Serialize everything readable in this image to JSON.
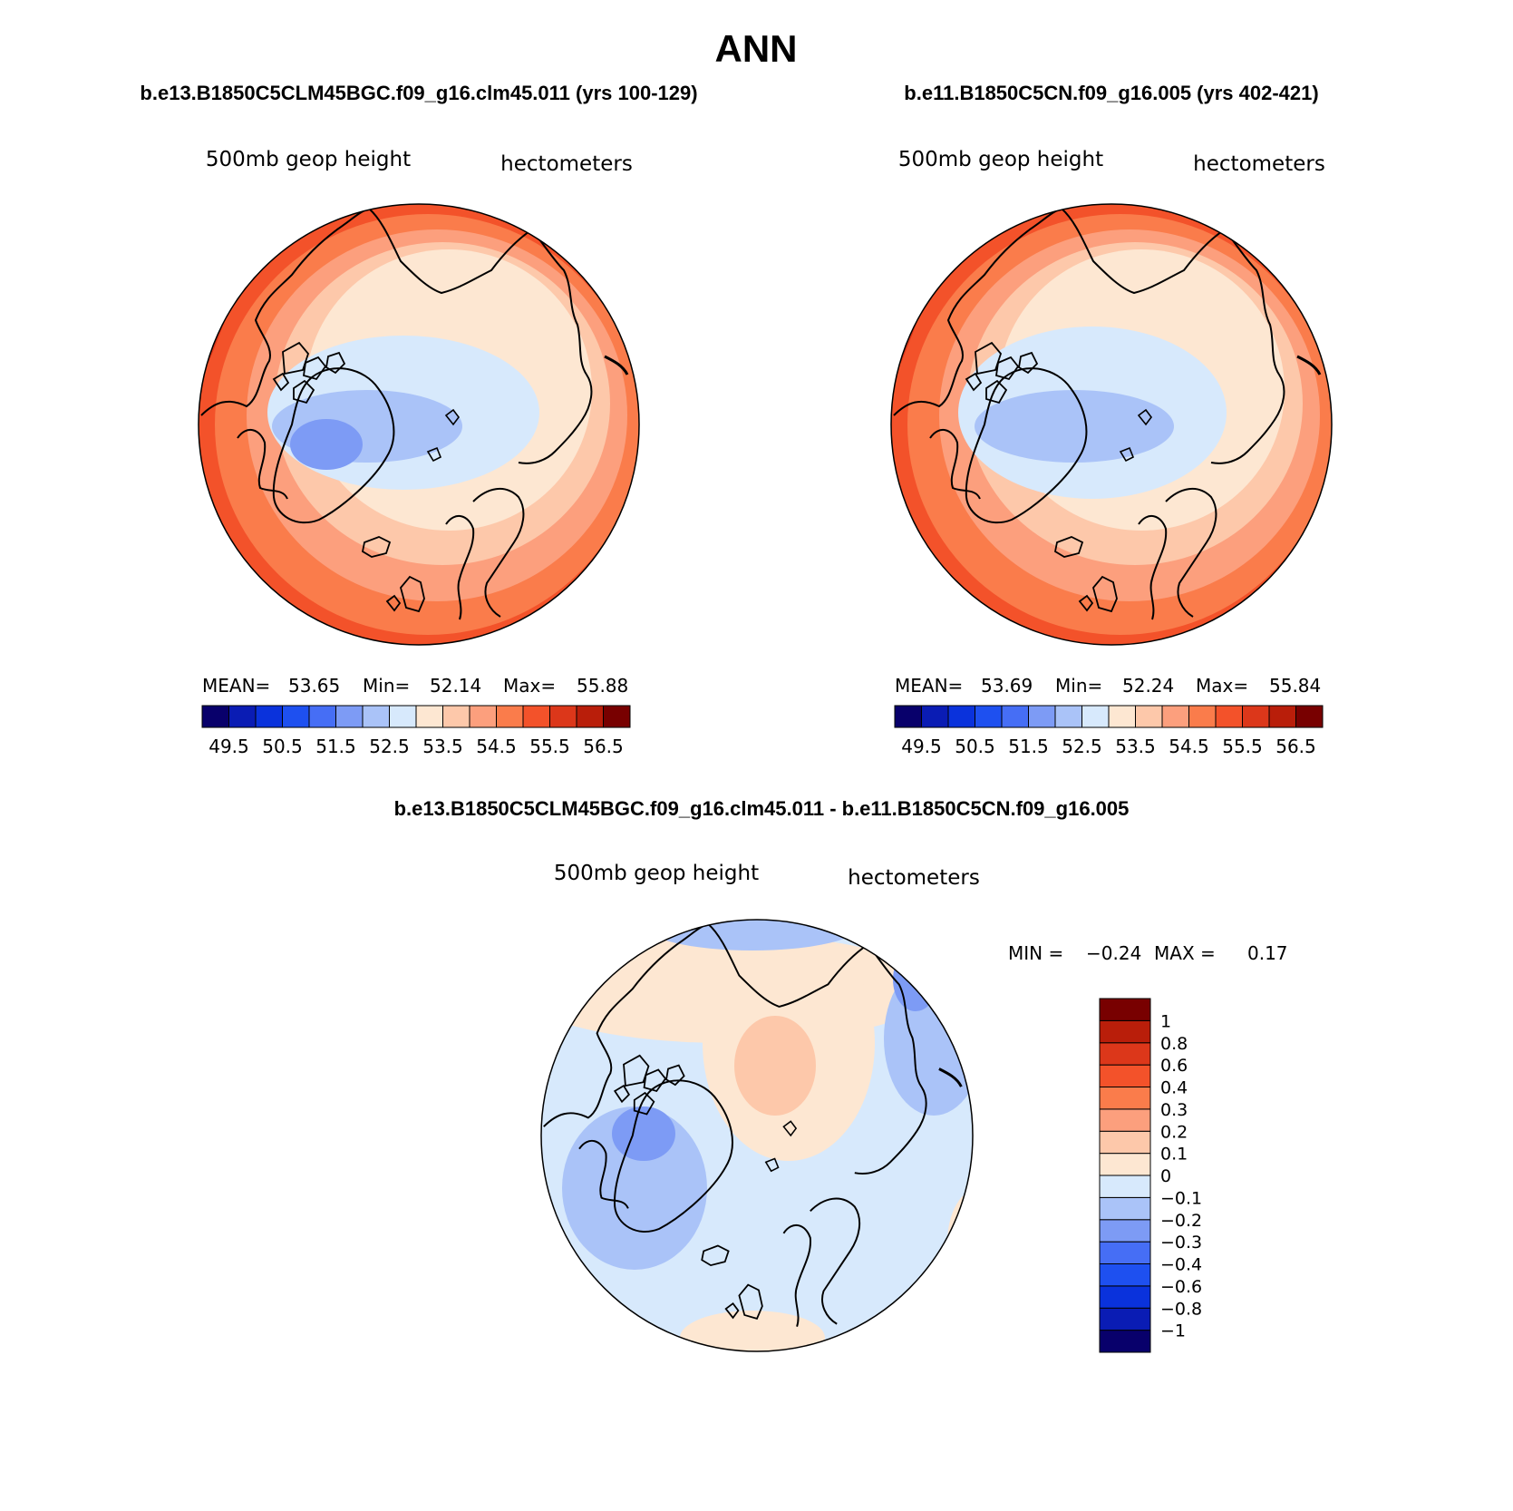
{
  "figure": {
    "title": "ANN",
    "panels": [
      {
        "case_title": "b.e13.B1850C5CLM45BGC.f09_g16.clm45.011 (yrs 100-129)",
        "variable_label": "500mb geop height",
        "units_label": "hectometers",
        "stats": {
          "mean_label": "MEAN=",
          "mean": "53.65",
          "min_label": "Min=",
          "min": "52.14",
          "max_label": "Max=",
          "max": "55.88"
        }
      },
      {
        "case_title": "b.e11.B1850C5CN.f09_g16.005 (yrs 402-421)",
        "variable_label": "500mb geop height",
        "units_label": "hectometers",
        "stats": {
          "mean_label": "MEAN=",
          "mean": "53.69",
          "min_label": "Min=",
          "min": "52.24",
          "max_label": "Max=",
          "max": "55.84"
        }
      }
    ],
    "diff_panel": {
      "title": "b.e13.B1850C5CLM45BGC.f09_g16.clm45.011 - b.e11.B1850C5CN.f09_g16.005",
      "variable_label": "500mb geop height",
      "units_label": "hectometers",
      "stats": {
        "min_label": "MIN =",
        "min": "−0.24",
        "max_label": "MAX =",
        "max": "0.17"
      }
    }
  },
  "colorbars": {
    "absolute": {
      "colors": [
        "#08006b",
        "#0a1cb4",
        "#0a32dc",
        "#1e50f0",
        "#466ef5",
        "#7d9bf5",
        "#aac3f8",
        "#d7e9fc",
        "#fde7d2",
        "#fdc8aa",
        "#fc9f7d",
        "#fa7c4b",
        "#f3522a",
        "#dc371a",
        "#b91e0a",
        "#780000"
      ],
      "tick_labels": [
        "49.5",
        "50.5",
        "51.5",
        "52.5",
        "53.5",
        "54.5",
        "55.5",
        "56.5"
      ]
    },
    "difference": {
      "colors": [
        "#08006b",
        "#0a1cb4",
        "#0a32dc",
        "#1e50f0",
        "#466ef5",
        "#7d9bf5",
        "#aac3f8",
        "#d7e9fc",
        "#fde7d2",
        "#fdc8aa",
        "#fc9f7d",
        "#fa7c4b",
        "#f3522a",
        "#dc371a",
        "#b91e0a",
        "#780000"
      ],
      "tick_labels": [
        "−1",
        "−0.8",
        "−0.6",
        "−0.4",
        "−0.3",
        "−0.2",
        "−0.1",
        "0",
        "0.1",
        "0.2",
        "0.3",
        "0.4",
        "0.6",
        "0.8",
        "1"
      ]
    }
  },
  "chart_data": [
    {
      "type": "heatmap",
      "projection": "north polar stereographic",
      "title": "b.e13.B1850C5CLM45BGC.f09_g16.clm45.011 (yrs 100-129)",
      "variable": "500mb geop height",
      "units": "hectometers",
      "contour_levels": [
        49.5,
        50,
        50.5,
        51,
        51.5,
        52,
        52.5,
        53,
        53.5,
        54,
        54.5,
        55,
        55.5,
        56,
        56.5
      ],
      "mean": 53.65,
      "min": 52.14,
      "max": 55.88,
      "field_description_levels": [
        52.0,
        52.5,
        53.0,
        53.5,
        54.0,
        54.5,
        55.0,
        55.5
      ]
    },
    {
      "type": "heatmap",
      "projection": "north polar stereographic",
      "title": "b.e11.B1850C5CN.f09_g16.005 (yrs 402-421)",
      "variable": "500mb geop height",
      "units": "hectometers",
      "contour_levels": [
        49.5,
        50,
        50.5,
        51,
        51.5,
        52,
        52.5,
        53,
        53.5,
        54,
        54.5,
        55,
        55.5,
        56,
        56.5
      ],
      "mean": 53.69,
      "min": 52.24,
      "max": 55.84,
      "field_description_levels": [
        52.0,
        52.5,
        53.0,
        53.5,
        54.0,
        54.5,
        55.0,
        55.5
      ]
    },
    {
      "type": "heatmap",
      "projection": "north polar stereographic",
      "title": "b.e13.B1850C5CLM45BGC.f09_g16.clm45.011 - b.e11.B1850C5CN.f09_g16.005",
      "variable": "500mb geop height",
      "units": "hectometers",
      "contour_levels": [
        -1,
        -0.8,
        -0.6,
        -0.4,
        -0.3,
        -0.2,
        -0.1,
        0,
        0.1,
        0.2,
        0.3,
        0.4,
        0.6,
        0.8,
        1
      ],
      "min": -0.24,
      "max": 0.17
    }
  ]
}
